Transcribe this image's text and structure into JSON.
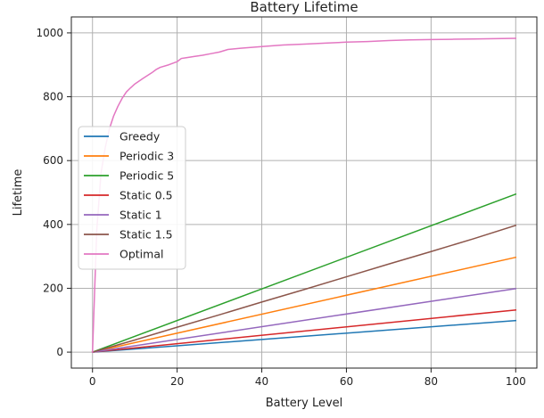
{
  "chart_data": {
    "type": "line",
    "title": "Battery Lifetime",
    "xlabel": "Battery Level",
    "ylabel": "Lifetime",
    "xlim": [
      -5,
      105
    ],
    "ylim": [
      -50,
      1050
    ],
    "xticks": [
      0,
      20,
      40,
      60,
      80,
      100
    ],
    "yticks": [
      0,
      200,
      400,
      600,
      800,
      1000
    ],
    "grid": true,
    "legend_position": "center-left",
    "series": [
      {
        "name": "Greedy",
        "color": "#1f77b4",
        "x": [
          0,
          100
        ],
        "y": [
          0,
          99
        ]
      },
      {
        "name": "Periodic 3",
        "color": "#ff7f0e",
        "x": [
          0,
          100
        ],
        "y": [
          0,
          297
        ]
      },
      {
        "name": "Periodic 5",
        "color": "#2ca02c",
        "x": [
          0,
          100
        ],
        "y": [
          0,
          495
        ]
      },
      {
        "name": "Static 0.5",
        "color": "#d62728",
        "x": [
          0,
          100
        ],
        "y": [
          0,
          132
        ]
      },
      {
        "name": "Static 1",
        "color": "#9467bd",
        "x": [
          0,
          100
        ],
        "y": [
          0,
          199
        ]
      },
      {
        "name": "Static 1.5",
        "color": "#8c564b",
        "x": [
          0,
          10,
          20,
          30,
          40,
          50,
          60,
          70,
          80,
          90,
          100
        ],
        "y": [
          0,
          38,
          78,
          117,
          157,
          196,
          236,
          276,
          315,
          355,
          397
        ]
      },
      {
        "name": "Optimal",
        "color": "#e377c2",
        "x": [
          0,
          1,
          2,
          3,
          4,
          5,
          6,
          7,
          8,
          9,
          10,
          12,
          14,
          15,
          16,
          18,
          20,
          21,
          22,
          24,
          26,
          28,
          30,
          32,
          35,
          40,
          45,
          50,
          55,
          60,
          65,
          70,
          75,
          80,
          85,
          90,
          95,
          100
        ],
        "y": [
          0,
          380,
          560,
          640,
          700,
          740,
          770,
          795,
          815,
          828,
          840,
          858,
          875,
          885,
          892,
          900,
          910,
          920,
          922,
          926,
          930,
          935,
          940,
          948,
          952,
          957,
          962,
          965,
          968,
          971,
          973,
          976,
          978,
          979,
          980,
          981,
          982,
          983
        ]
      }
    ]
  }
}
